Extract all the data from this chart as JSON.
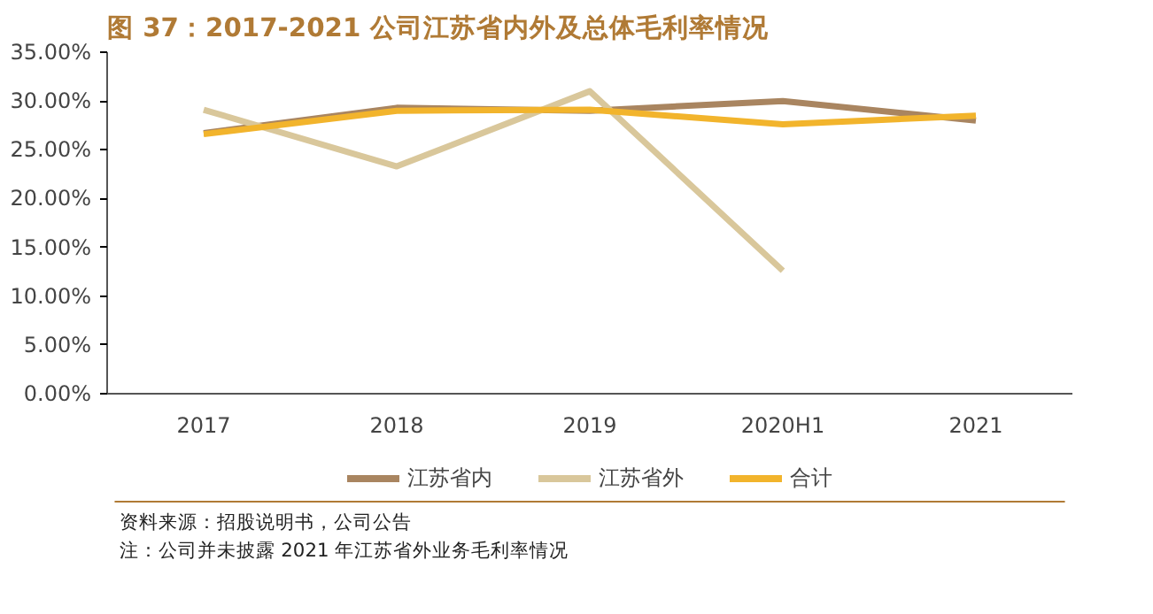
{
  "chart_data": {
    "type": "line",
    "title": "图 37：2017-2021 公司江苏省内外及总体毛利率情况",
    "categories": [
      "2017",
      "2018",
      "2019",
      "2020H1",
      "2021"
    ],
    "series": [
      {
        "name": "江苏省内",
        "color": "#a98560",
        "values": [
          26.7,
          29.3,
          29.0,
          30.0,
          28.0
        ]
      },
      {
        "name": "江苏省外",
        "color": "#d9c79b",
        "values": [
          29.1,
          23.3,
          31.0,
          12.6,
          null
        ]
      },
      {
        "name": "合计",
        "color": "#f2b42c",
        "values": [
          26.6,
          29.0,
          29.1,
          27.6,
          28.5
        ]
      }
    ],
    "ylim": [
      0,
      35
    ],
    "yticks": [
      {
        "value": 0,
        "label": "0.00%"
      },
      {
        "value": 5,
        "label": "5.00%"
      },
      {
        "value": 10,
        "label": "10.00%"
      },
      {
        "value": 15,
        "label": "15.00%"
      },
      {
        "value": 20,
        "label": "20.00%"
      },
      {
        "value": 25,
        "label": "25.00%"
      },
      {
        "value": 30,
        "label": "30.00%"
      },
      {
        "value": 35,
        "label": "35.00%"
      }
    ],
    "grid": false,
    "legend": "bottom",
    "line_style": "solid",
    "marker": "none",
    "annotations": [
      "资料来源：招股说明书，公司公告",
      "注：公司并未披露 2021 年江苏省外业务毛利率情况"
    ]
  }
}
